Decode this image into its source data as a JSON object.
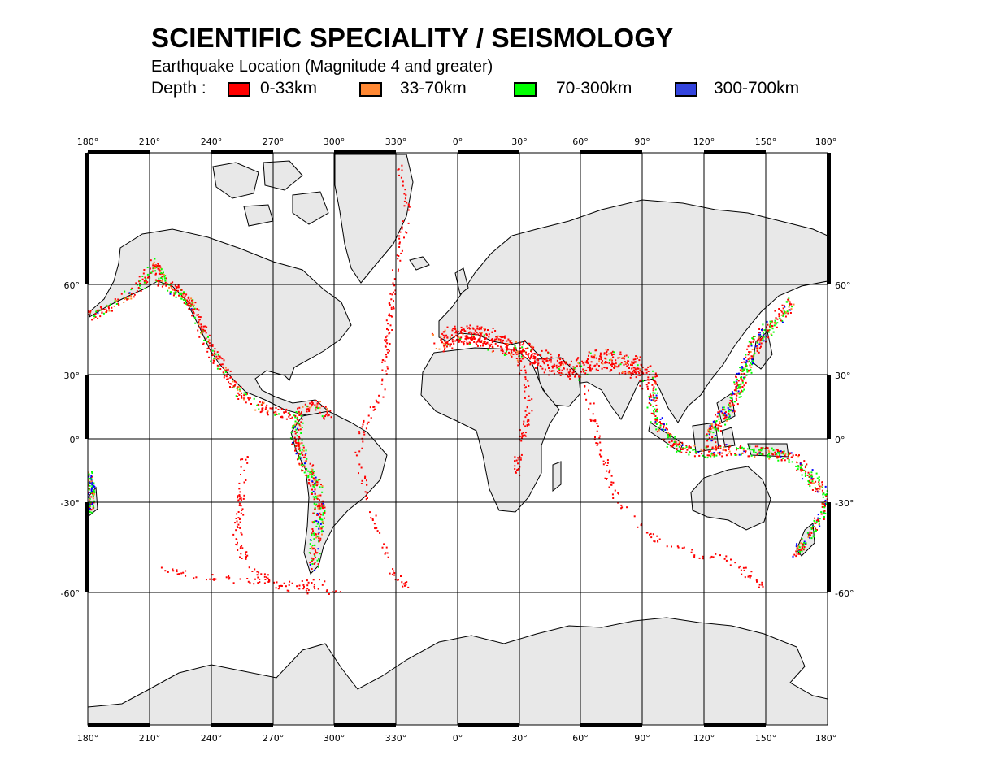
{
  "header": {
    "title": "SCIENTIFIC SPECIALITY / SEISMOLOGY",
    "subtitle": "Earthquake Location (Magnitude 4 and greater)",
    "depth_label": "Depth :"
  },
  "legend": [
    {
      "label": "0-33km",
      "color": "#ff0000"
    },
    {
      "label": "33-70km",
      "color": "#ff8833"
    },
    {
      "label": "70-300km",
      "color": "#00ff00"
    },
    {
      "label": "300-700km",
      "color": "#0000ff"
    }
  ],
  "map": {
    "longitude_ticks": [
      "180°",
      "210°",
      "240°",
      "270°",
      "300°",
      "330°",
      "0°",
      "30°",
      "60°",
      "90°",
      "120°",
      "150°",
      "180°"
    ],
    "latitude_ticks": [
      "60°",
      "30°",
      "0°",
      "-30°",
      "-60°"
    ],
    "land_color": "#e8e8e8",
    "coast_color": "#000000"
  }
}
